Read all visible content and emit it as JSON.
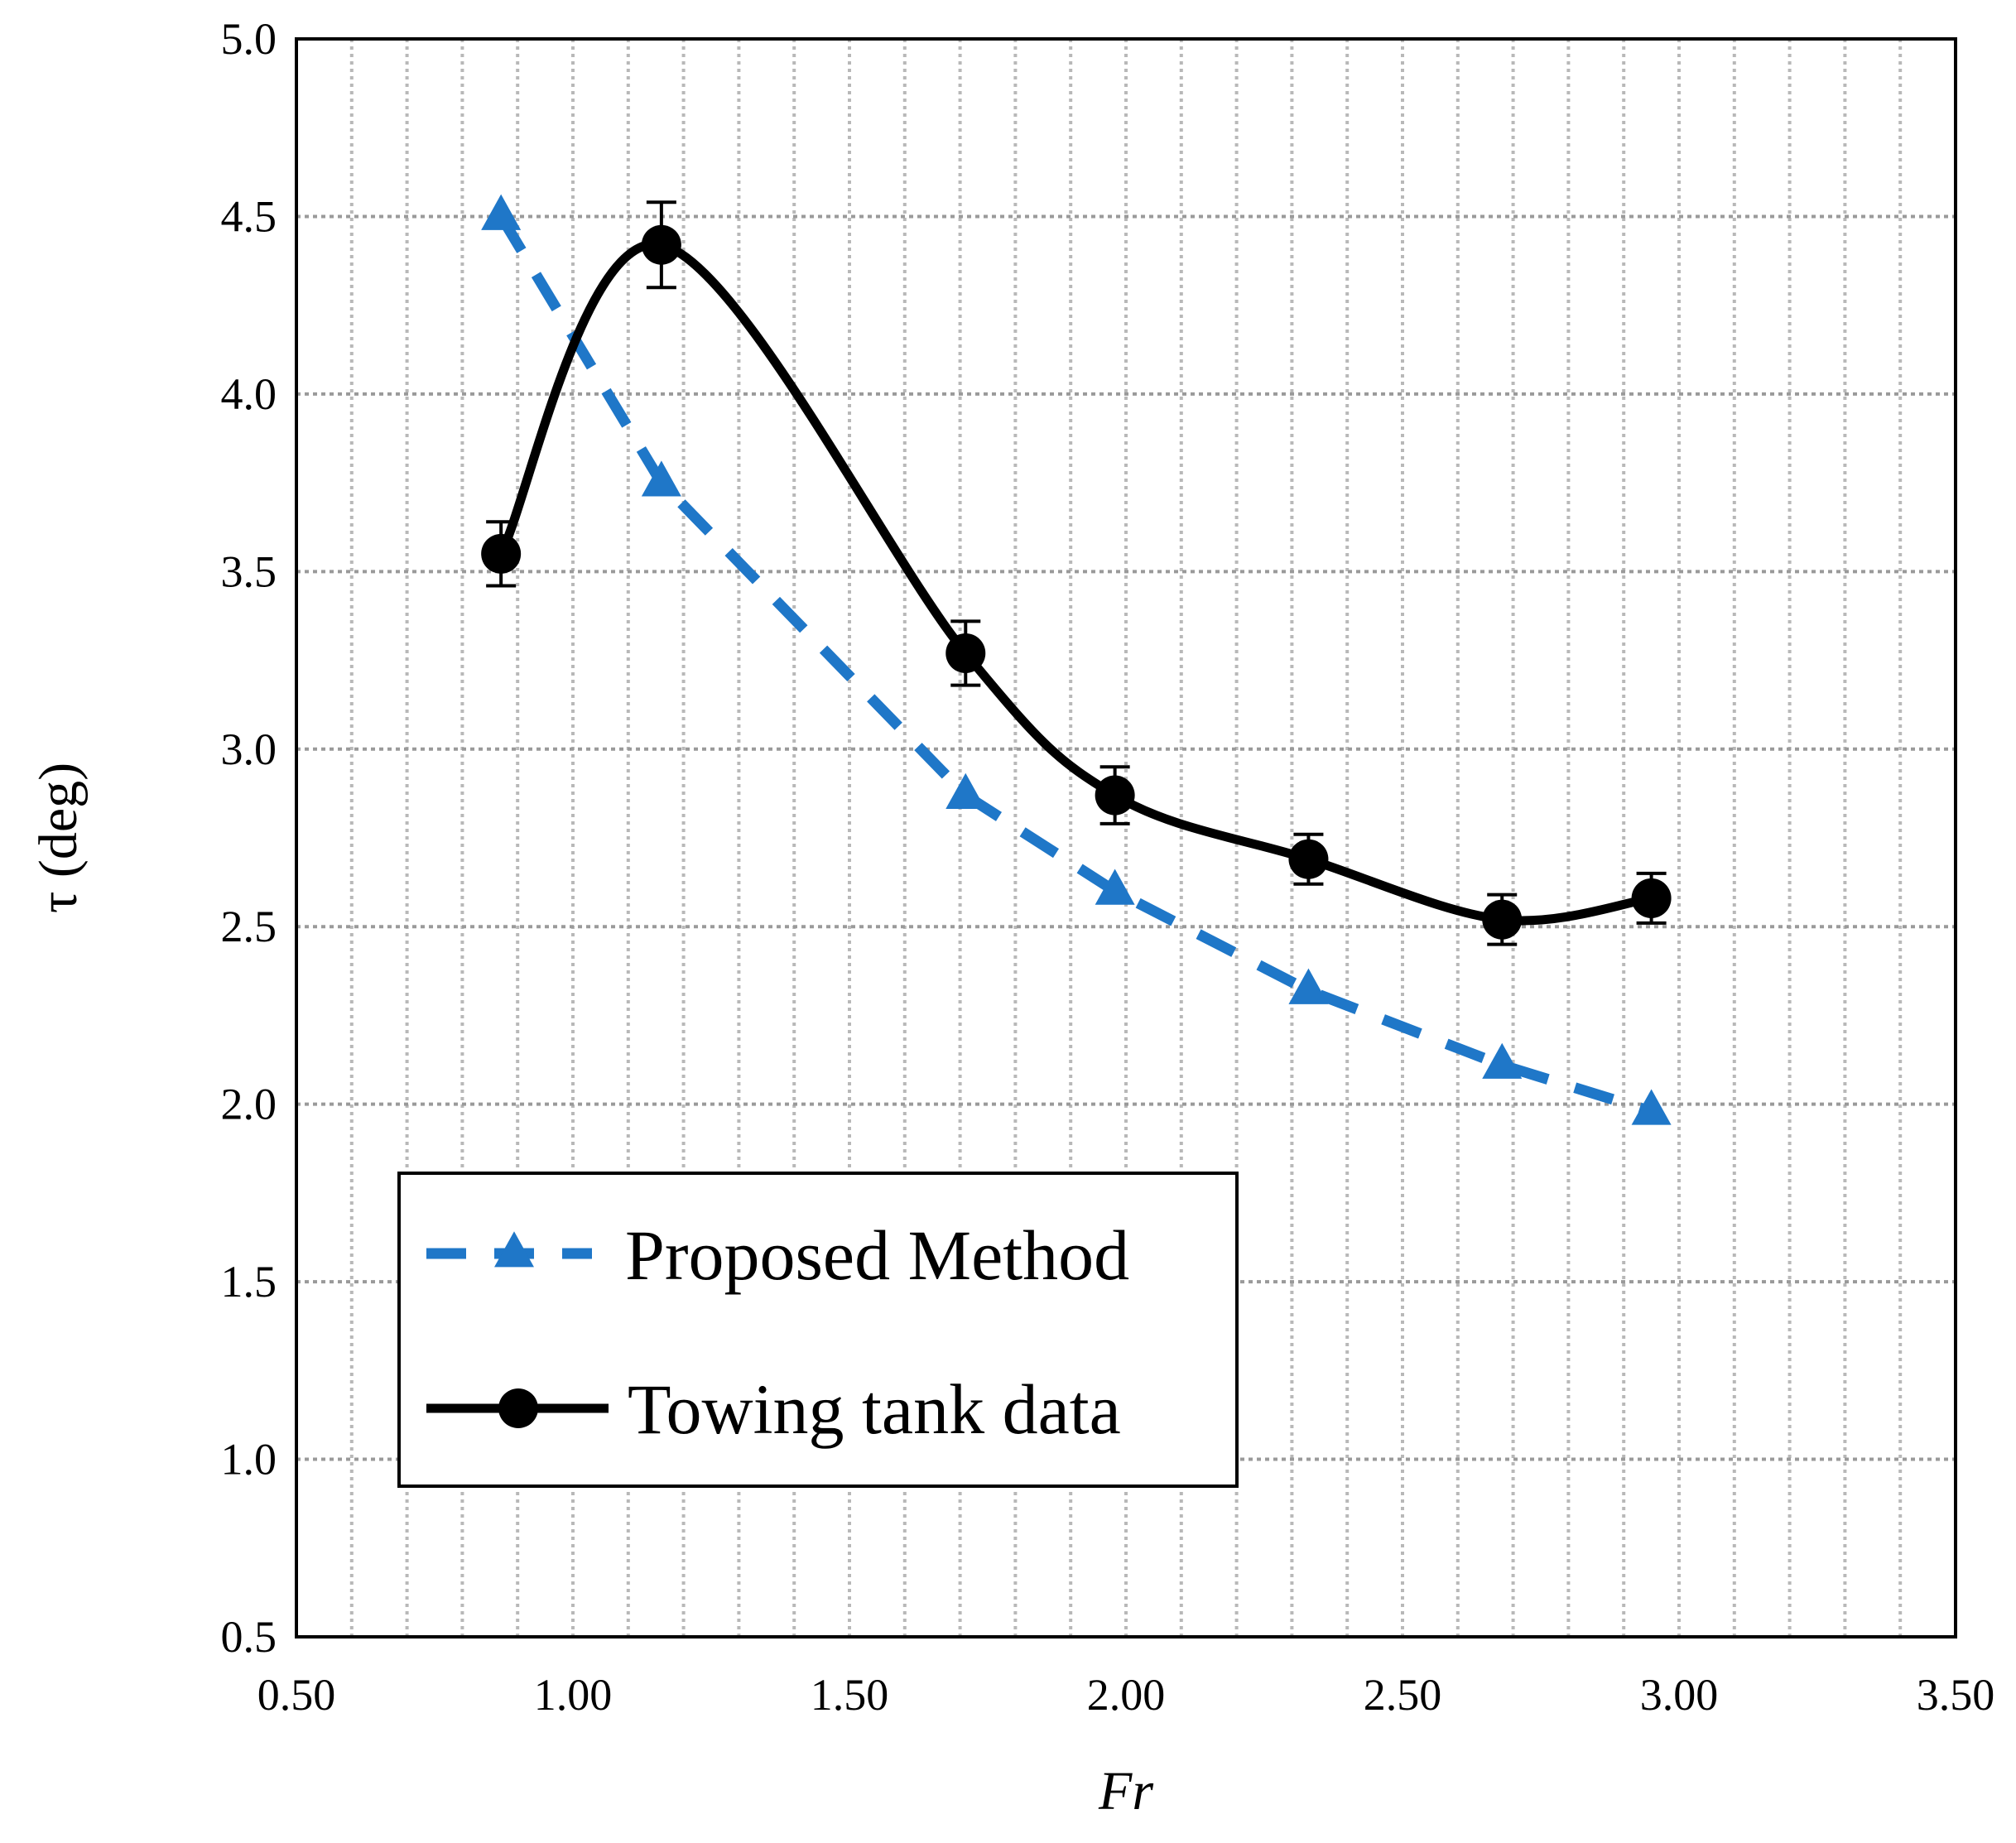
{
  "chart_data": {
    "type": "line",
    "title": "",
    "xlabel": "Fr",
    "ylabel": "τ (deg)",
    "xlim": [
      0.5,
      3.5
    ],
    "ylim": [
      0.5,
      5.0
    ],
    "xticks": [
      0.5,
      1.0,
      1.5,
      2.0,
      2.5,
      3.0,
      3.5
    ],
    "xtick_labels": [
      "0.50",
      "1.00",
      "1.50",
      "2.00",
      "2.50",
      "3.00",
      "3.50"
    ],
    "yticks": [
      0.5,
      1.0,
      1.5,
      2.0,
      2.5,
      3.0,
      3.5,
      4.0,
      4.5,
      5.0
    ],
    "ytick_labels": [
      "0.5",
      "1.0",
      "1.5",
      "2.0",
      "2.5",
      "3.0",
      "3.5",
      "4.0",
      "4.5",
      "5.0"
    ],
    "x_minor_step": 0.1,
    "grid": true,
    "legend_position": "lower-left",
    "series": [
      {
        "name": "Proposed Method",
        "style": "dashed",
        "marker": "triangle",
        "color": "#1F77C8",
        "x": [
          0.87,
          1.16,
          1.71,
          1.98,
          2.33,
          2.68,
          2.95
        ],
        "y": [
          4.5,
          3.75,
          2.87,
          2.6,
          2.32,
          2.11,
          1.98
        ]
      },
      {
        "name": "Towing tank data",
        "style": "solid-smooth",
        "marker": "circle",
        "color": "#000000",
        "x": [
          0.87,
          1.16,
          1.71,
          1.98,
          2.33,
          2.68,
          2.95
        ],
        "y": [
          3.55,
          4.42,
          3.27,
          2.87,
          2.69,
          2.52,
          2.58
        ],
        "error": [
          0.09,
          0.12,
          0.09,
          0.08,
          0.07,
          0.07,
          0.07
        ]
      }
    ]
  }
}
